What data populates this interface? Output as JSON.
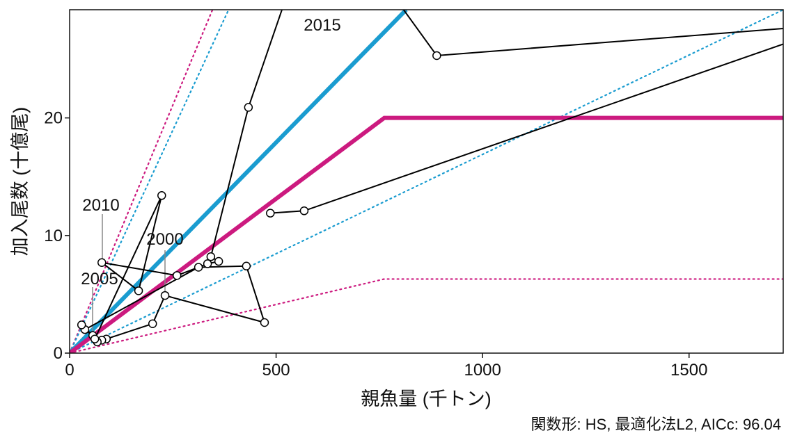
{
  "chart_data": {
    "type": "line",
    "xlabel": "親魚量 (千トン)",
    "ylabel": "加入尾数 (十億尾)",
    "caption": "関数形: HS, 最適化法L2, AICc: 96.04",
    "xlim": [
      0,
      1728
    ],
    "ylim": [
      0,
      29.2
    ],
    "xticks": [
      0,
      500,
      1000,
      1500
    ],
    "yticks": [
      0,
      10,
      20
    ],
    "lines": [
      {
        "color": "#cc1a7f",
        "style": "dotted",
        "x": [
          0,
          346
        ],
        "y": [
          0,
          29.2
        ]
      },
      {
        "color": "#1a9cd0",
        "style": "dotted",
        "x": [
          0,
          385
        ],
        "y": [
          0,
          29.2
        ]
      },
      {
        "color": "#1a9cd0",
        "style": "dotted",
        "x": [
          0,
          1728
        ],
        "y": [
          0,
          29.2
        ]
      },
      {
        "color": "#cc1a7f",
        "style": "dotted",
        "x": [
          0,
          762,
          1728
        ],
        "y": [
          0,
          6.3,
          6.3
        ]
      },
      {
        "color": "#1a9cd0",
        "style": "thick",
        "x": [
          0,
          815
        ],
        "y": [
          0,
          29.2
        ]
      },
      {
        "color": "#cc1a7f",
        "style": "thick",
        "x": [
          0,
          762,
          1728
        ],
        "y": [
          0,
          20,
          20
        ]
      }
    ],
    "observed": {
      "color": "#000000",
      "x": [
        89,
        78,
        67,
        201,
        231,
        472,
        428,
        312,
        37,
        56,
        29,
        61,
        223,
        167,
        78,
        260,
        334,
        361,
        342,
        433,
        609,
        889,
        2000,
        2000,
        568,
        486
      ],
      "y": [
        1.2,
        1.1,
        0.95,
        2.5,
        4.9,
        2.6,
        7.4,
        7.3,
        2.0,
        1.5,
        2.4,
        1.2,
        13.4,
        5.3,
        7.7,
        6.6,
        7.6,
        7.8,
        8.2,
        20.9,
        38.9,
        25.3,
        28.35,
        29.6,
        12.1,
        11.9
      ]
    },
    "annotations": [
      "2000",
      "2005",
      "2010",
      "2015"
    ]
  }
}
